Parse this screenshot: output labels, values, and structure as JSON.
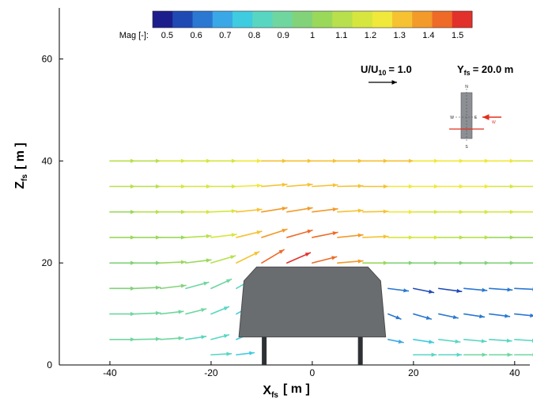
{
  "chart_data": {
    "type": "vector_field",
    "xlabel": "X",
    "xlabel_sub": "fs",
    "xlabel_unit": "[ m ]",
    "ylabel": "Z",
    "ylabel_sub": "fs",
    "ylabel_unit": "[ m ]",
    "xlim": [
      -50,
      43
    ],
    "ylim": [
      0,
      70
    ],
    "xticks": [
      "-40",
      "-20",
      "0",
      "20",
      "40"
    ],
    "yticks": [
      "0",
      "20",
      "40",
      "60"
    ],
    "xtick_values": [
      -40,
      -20,
      0,
      20,
      40
    ],
    "ytick_values": [
      0,
      20,
      40,
      60
    ],
    "colorbar": {
      "title": "Mag [-]:",
      "min": 0.45,
      "max": 1.55,
      "ticks": [
        "0.5",
        "0.6",
        "0.7",
        "0.8",
        "0.9",
        "1",
        "1.1",
        "1.2",
        "1.3",
        "1.4",
        "1.5"
      ],
      "tick_values": [
        0.5,
        0.6,
        0.7,
        0.8,
        0.9,
        1.0,
        1.1,
        1.2,
        1.3,
        1.4,
        1.5
      ],
      "colors": [
        "#1c1e8c",
        "#1f4ab4",
        "#2a78d2",
        "#3aa8e6",
        "#3fcbe0",
        "#58d6c2",
        "#6fd6a0",
        "#82d27a",
        "#9ad85a",
        "#b7e04c",
        "#d6e63e",
        "#f0e83a",
        "#f6c232",
        "#f29a2a",
        "#ee6a26",
        "#e2312a"
      ]
    },
    "reference_vector_label": "U/U",
    "reference_vector_sub": "10",
    "reference_vector_value": "= 1.0",
    "reference_vector_magnitude": 1.0,
    "section_label": "Y",
    "section_label_sub": "fs",
    "section_label_value": "= 20.0 m",
    "inset_labels": {
      "north": "N",
      "south": "S",
      "west": "W",
      "east": "E",
      "wind": "W"
    },
    "inset_colors": {
      "building": "#8c8f94",
      "cut_line": "#e0301e",
      "wind_arrow": "#e0301e"
    },
    "building": {
      "outline": [
        [
          -14.5,
          5.5
        ],
        [
          -13.5,
          16.5
        ],
        [
          -11,
          19.2
        ],
        [
          11,
          19.2
        ],
        [
          13.5,
          16.5
        ],
        [
          14.5,
          5.5
        ]
      ],
      "leg_xs": [
        -9.5,
        9.5
      ],
      "color": "#6a6d70"
    },
    "vector_rows": [
      {
        "z": 40,
        "x_values": [
          -40,
          -35,
          -30,
          -25,
          -20,
          -15,
          -10,
          -5,
          0,
          5,
          10,
          15,
          20,
          25,
          30,
          35,
          40
        ],
        "dx": [
          5,
          5,
          5,
          5,
          5,
          5,
          5,
          5,
          5,
          5,
          5,
          5,
          5,
          5,
          5,
          5,
          5
        ],
        "dz": [
          0,
          0,
          0,
          0,
          0,
          0,
          0,
          0,
          0,
          0,
          0,
          0,
          0,
          0,
          0,
          0,
          0
        ],
        "mag": [
          1.1,
          1.1,
          1.15,
          1.2,
          1.2,
          1.25,
          1.28,
          1.3,
          1.3,
          1.3,
          1.3,
          1.28,
          1.25,
          1.25,
          1.22,
          1.22,
          1.2
        ]
      },
      {
        "z": 35,
        "x_values": [
          -40,
          -35,
          -30,
          -25,
          -20,
          -15,
          -10,
          -5,
          0,
          5,
          10,
          15,
          20,
          25,
          30,
          35,
          40
        ],
        "dx": [
          5,
          5,
          5,
          5,
          5,
          5,
          5,
          5,
          5,
          5,
          5,
          5,
          5,
          5,
          5,
          5,
          5
        ],
        "dz": [
          0,
          0,
          0,
          0,
          0,
          0.2,
          0.4,
          0.4,
          0.3,
          0.1,
          0,
          0,
          0,
          0,
          0,
          0,
          0
        ],
        "mag": [
          1.1,
          1.1,
          1.15,
          1.2,
          1.2,
          1.25,
          1.3,
          1.32,
          1.32,
          1.3,
          1.28,
          1.25,
          1.25,
          1.22,
          1.22,
          1.2,
          1.2
        ]
      },
      {
        "z": 30,
        "x_values": [
          -40,
          -35,
          -30,
          -25,
          -20,
          -15,
          -10,
          -5,
          0,
          5,
          10,
          15,
          20,
          25,
          30,
          35,
          40
        ],
        "dx": [
          5,
          5,
          5,
          5,
          5,
          5,
          5,
          5,
          5,
          5,
          5,
          5,
          5,
          5,
          5,
          5,
          5
        ],
        "dz": [
          0,
          0,
          0,
          0,
          0.2,
          0.5,
          0.8,
          0.8,
          0.6,
          0.3,
          0.1,
          0,
          0,
          0,
          0,
          0,
          0
        ],
        "mag": [
          1.05,
          1.1,
          1.1,
          1.15,
          1.2,
          1.3,
          1.35,
          1.38,
          1.36,
          1.32,
          1.3,
          1.25,
          1.2,
          1.2,
          1.18,
          1.18,
          1.15
        ]
      },
      {
        "z": 25,
        "x_values": [
          -40,
          -35,
          -30,
          -25,
          -20,
          -15,
          -10,
          -5,
          0,
          5,
          10,
          15,
          20,
          25,
          30,
          35,
          40
        ],
        "dx": [
          5,
          5,
          5,
          5,
          5,
          5,
          5,
          5,
          5,
          5,
          5,
          5,
          5,
          5,
          5,
          5,
          5
        ],
        "dz": [
          0,
          0,
          0,
          0.3,
          0.6,
          1.2,
          1.6,
          1.4,
          1.0,
          0.5,
          0.2,
          0,
          0,
          0,
          0,
          0,
          0
        ],
        "mag": [
          1.0,
          1.0,
          1.05,
          1.1,
          1.15,
          1.3,
          1.4,
          1.45,
          1.42,
          1.38,
          1.3,
          1.2,
          1.15,
          1.1,
          1.1,
          1.05,
          1.05
        ]
      },
      {
        "z": 20,
        "x_values": [
          -40,
          -35,
          -30,
          -25,
          -20,
          -15,
          -10,
          -5,
          0,
          5,
          10,
          15,
          20,
          25,
          30,
          35,
          40
        ],
        "dx": [
          5,
          5,
          5,
          5,
          4.8,
          4.5,
          4.4,
          4.6,
          4.8,
          5,
          5,
          5,
          5,
          5,
          5,
          5,
          5
        ],
        "dz": [
          0,
          0,
          0.2,
          0.6,
          1.4,
          2.2,
          2.6,
          2.0,
          1.2,
          0.4,
          0,
          0,
          0,
          0,
          0,
          0,
          0
        ],
        "mag": [
          0.95,
          0.95,
          1.0,
          1.05,
          1.1,
          1.3,
          1.45,
          1.5,
          1.45,
          1.35,
          1.0,
          0.95,
          0.95,
          0.95,
          0.95,
          0.95,
          0.95
        ]
      },
      {
        "z": 15,
        "x_values": [
          -40,
          -35,
          -30,
          -25,
          -20,
          -15,
          15,
          20,
          25,
          30,
          35,
          40
        ],
        "dx": [
          5,
          5,
          5,
          4.5,
          4.0,
          3.5,
          4.0,
          4.0,
          4.5,
          4.5,
          4.5,
          4.5
        ],
        "dz": [
          0,
          0.2,
          0.6,
          1.2,
          1.8,
          2.0,
          -0.5,
          -0.8,
          -0.6,
          -0.4,
          -0.3,
          -0.2
        ],
        "mag": [
          0.95,
          0.95,
          0.95,
          0.9,
          0.88,
          0.85,
          0.6,
          0.55,
          0.55,
          0.6,
          0.6,
          0.6
        ]
      },
      {
        "z": 10,
        "x_values": [
          -40,
          -35,
          -30,
          -25,
          -20,
          -15,
          15,
          20,
          25,
          30,
          35,
          40
        ],
        "dx": [
          5,
          5,
          4.5,
          4.0,
          3.5,
          3.0,
          2.5,
          3.5,
          3.8,
          4.0,
          4.0,
          4.0
        ],
        "dz": [
          0,
          0.2,
          0.5,
          1.0,
          1.4,
          1.6,
          -1.0,
          -1.0,
          -0.8,
          -0.6,
          -0.5,
          -0.4
        ],
        "mag": [
          0.9,
          0.9,
          0.9,
          0.88,
          0.82,
          0.78,
          0.6,
          0.6,
          0.62,
          0.65,
          0.65,
          0.65
        ]
      },
      {
        "z": 5,
        "x_values": [
          -40,
          -35,
          -30,
          -25,
          -20,
          -15,
          15,
          20,
          25,
          30,
          35,
          40
        ],
        "dx": [
          5,
          5,
          4.5,
          4.0,
          3.5,
          3.0,
          3.0,
          4.0,
          4.2,
          4.4,
          4.4,
          4.4
        ],
        "dz": [
          0,
          0.1,
          0.3,
          0.6,
          0.9,
          1.2,
          -0.6,
          -0.6,
          -0.5,
          -0.4,
          -0.3,
          -0.3
        ],
        "mag": [
          0.9,
          0.9,
          0.88,
          0.85,
          0.8,
          0.75,
          0.7,
          0.75,
          0.8,
          0.82,
          0.82,
          0.82
        ]
      },
      {
        "z": 2,
        "x_values": [
          -20,
          -15,
          20,
          25,
          30,
          35,
          40
        ],
        "dx": [
          4.0,
          3.5,
          4.5,
          4.5,
          4.5,
          4.5,
          4.5
        ],
        "dz": [
          0.2,
          0.4,
          0,
          0,
          0,
          0,
          0
        ],
        "mag": [
          0.8,
          0.75,
          0.85,
          0.85,
          0.88,
          0.9,
          0.9
        ]
      }
    ]
  }
}
